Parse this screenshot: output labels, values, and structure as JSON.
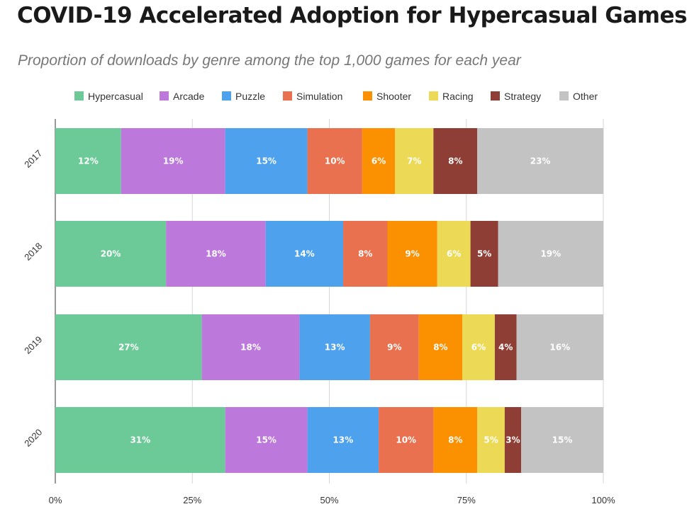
{
  "title": "COVID-19 Accelerated Adoption for Hypercasual Games",
  "subtitle": "Proportion of downloads by genre among the top 1,000 games for each year",
  "chart_data": {
    "type": "bar",
    "orientation": "horizontal",
    "stacked": true,
    "categories": [
      "2017",
      "2018",
      "2019",
      "2020"
    ],
    "series": [
      {
        "name": "Hypercasual",
        "color": "#6cca98",
        "values": [
          12,
          20,
          27,
          31
        ]
      },
      {
        "name": "Arcade",
        "color": "#bd78dc",
        "values": [
          19,
          18,
          18,
          15
        ]
      },
      {
        "name": "Puzzle",
        "color": "#4ea1ec",
        "values": [
          15,
          14,
          13,
          13
        ]
      },
      {
        "name": "Simulation",
        "color": "#e9714f",
        "values": [
          10,
          8,
          9,
          10
        ]
      },
      {
        "name": "Shooter",
        "color": "#fb9000",
        "values": [
          6,
          9,
          8,
          8
        ]
      },
      {
        "name": "Racing",
        "color": "#ecda57",
        "values": [
          7,
          6,
          6,
          5
        ]
      },
      {
        "name": "Strategy",
        "color": "#8e3e34",
        "values": [
          8,
          5,
          4,
          3
        ]
      },
      {
        "name": "Other",
        "color": "#c3c3c3",
        "values": [
          23,
          19,
          16,
          15
        ]
      }
    ],
    "xlim": [
      0,
      100
    ],
    "xticks": [
      "0%",
      "25%",
      "50%",
      "75%",
      "100%"
    ],
    "grid": true,
    "legend": "top"
  }
}
